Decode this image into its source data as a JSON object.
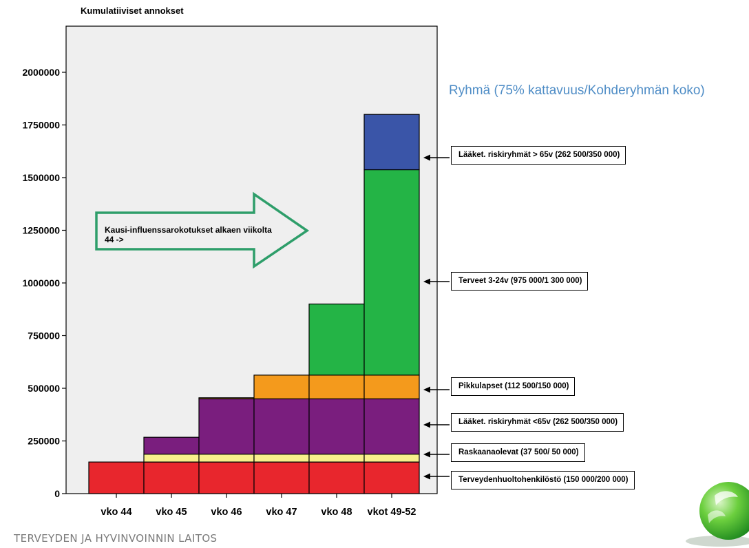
{
  "chart_data": {
    "type": "bar",
    "stacked": true,
    "ylabel": "Kumulatiiviset annokset",
    "ylim": [
      0,
      2200000
    ],
    "y_ticks": [
      0,
      250000,
      500000,
      750000,
      1000000,
      1250000,
      1500000,
      1750000,
      2000000
    ],
    "y_tick_labels": [
      "0",
      "250000",
      "500000",
      "750000",
      "1000000",
      "1250000",
      "1500000",
      "1750000",
      "2000000"
    ],
    "categories": [
      "vko 44",
      "vko 45",
      "vko 46",
      "vko 47",
      "vko 48",
      "vkot 49-52"
    ],
    "series": [
      {
        "name": "Terveydenhuoltohenkilöstö (150 000/200 000)",
        "color": "#e8262d",
        "values": [
          150000,
          150000,
          150000,
          150000,
          150000,
          150000
        ]
      },
      {
        "name": "Raskaanaolevat (37 500/ 50 000)",
        "color": "#f8f08c",
        "values": [
          0,
          37500,
          37500,
          37500,
          37500,
          37500
        ]
      },
      {
        "name": "Lääket. riskiryhmät <65v (262 500/350 000)",
        "color": "#7a1e7e",
        "values": [
          0,
          80000,
          262500,
          262500,
          262500,
          262500
        ]
      },
      {
        "name": "Pikkulapset (112 500/150 000)",
        "color": "#f49a1c",
        "values": [
          0,
          0,
          5000,
          112500,
          112500,
          112500
        ]
      },
      {
        "name": "Terveet 3-24v (975 000/1 300 000)",
        "color": "#24b446",
        "values": [
          0,
          0,
          0,
          0,
          337500,
          975000
        ]
      },
      {
        "name": "Lääket. riskiryhmät > 65v (262 500/350 000)",
        "color": "#3a55a8",
        "values": [
          0,
          0,
          0,
          0,
          0,
          262500
        ]
      }
    ],
    "grid": false,
    "legend_title": "Ryhmä (75% kattavuus/Kohderyhmän koko)",
    "legend_position": "right"
  },
  "annotation": {
    "text": "Kausi-influenssarokotukset alkaen viikolta 44 ->",
    "arrow_color": "#2e9e6a"
  },
  "callout_labels": [
    "Lääket. riskiryhmät > 65v (262 500/350 000)",
    "Terveet 3-24v (975 000/1 300 000)",
    "Pikkulapset (112 500/150 000)",
    "Lääket. riskiryhmät <65v (262 500/350 000)",
    "Raskaanaolevat (37 500/ 50 000)",
    "Terveydenhuoltohenkilöstö (150 000/200 000)"
  ],
  "footer": "TERVEYDEN JA HYVINVOINNIN LAITOS",
  "colors": {
    "plot_background": "#efefef",
    "legend_title": "#4f8dc6",
    "logo": "#5cc542"
  },
  "logo_icon": "leaf-sphere-icon"
}
